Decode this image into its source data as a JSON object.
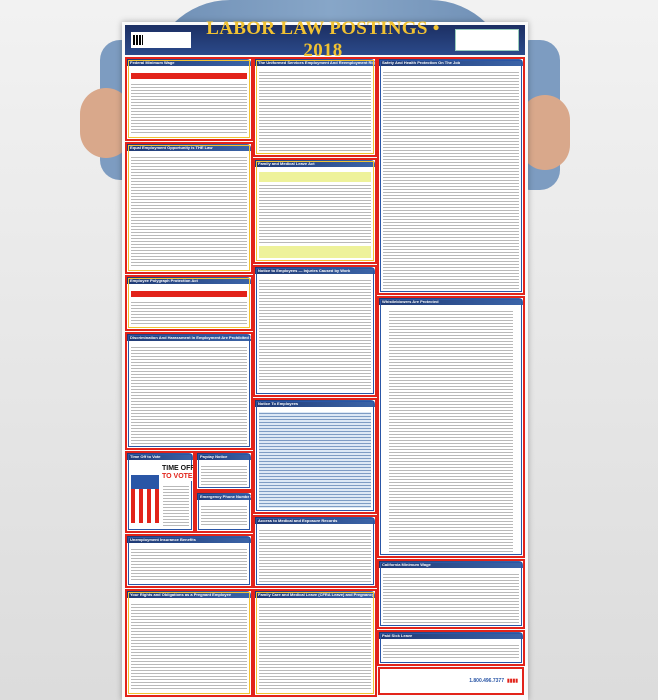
{
  "poster": {
    "title": "LABOR LAW POSTINGS • 2018",
    "footer_phone": "1.800.496.7377",
    "sections": {
      "federal_minimum_wage": "Federal Minimum Wage",
      "eeo": "Equal Employment Opportunity is THE Law",
      "polygraph": "Employee Polygraph Protection Act",
      "discrimination": "Discrimination And Harassment In Employment Are Prohibited By Law",
      "time_off_vote": "Time Off to Vote",
      "vote_headline_1": "TIME OFF",
      "vote_headline_2": "TO VOTE",
      "payday": "Payday Notice",
      "emergency": "Emergency Phone Numbers",
      "unemployment": "Unemployment Insurance Benefits",
      "pregnant": "Your Rights and Obligations as a Pregnant Employee",
      "userra": "The Uniformed Services Employment And Reemployment Rights Act",
      "fmla": "Family and Medical Leave Act",
      "injuries": "Notice to Employees — Injuries Caused by Work",
      "notice": "Notice To Employees",
      "medical_records": "Access to Medical and Exposure Records",
      "cfra": "Family Care and Medical Leave (CFRA Leave) and Pregnancy Disability Leave",
      "safety": "Safety And Health Protection On The Job",
      "whistleblowers": "Whistleblowers Are Protected",
      "ca_min_wage": "California Minimum Wage",
      "paid_sick": "Paid Sick Leave"
    },
    "colors": {
      "border": "#e2231a",
      "header_bg": "#1c2f63",
      "title": "#f1c232"
    }
  }
}
